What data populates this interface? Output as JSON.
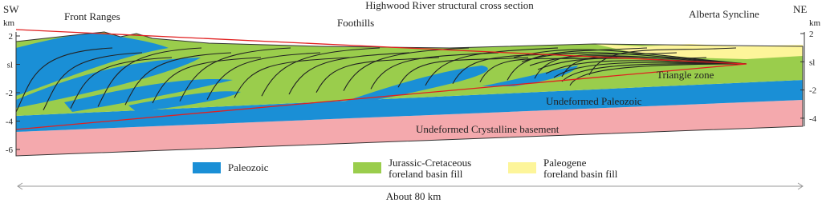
{
  "header": {
    "title": "Highwood River structural cross section",
    "left_end": "SW",
    "right_end": "NE"
  },
  "regions": [
    "Front Ranges",
    "Foothills",
    "Alberta Syncline"
  ],
  "left_axis": {
    "unit": "km",
    "ticks": [
      "2",
      "sl",
      "-2",
      "-4",
      "-6"
    ]
  },
  "right_axis": {
    "unit": "km",
    "ticks": [
      "2",
      "sl",
      "-2",
      "-4"
    ]
  },
  "units": [
    "Triangle zone",
    "Undeformed Paleozoic",
    "Undeformed Crystalline basement"
  ],
  "legend": [
    {
      "lines": [
        "Paleozoic"
      ]
    },
    {
      "lines": [
        "Jurassic-Cretaceous",
        "foreland basin fill"
      ]
    },
    {
      "lines": [
        "Paleogene",
        "foreland basin fill"
      ]
    }
  ],
  "scale": "About 80 km"
}
